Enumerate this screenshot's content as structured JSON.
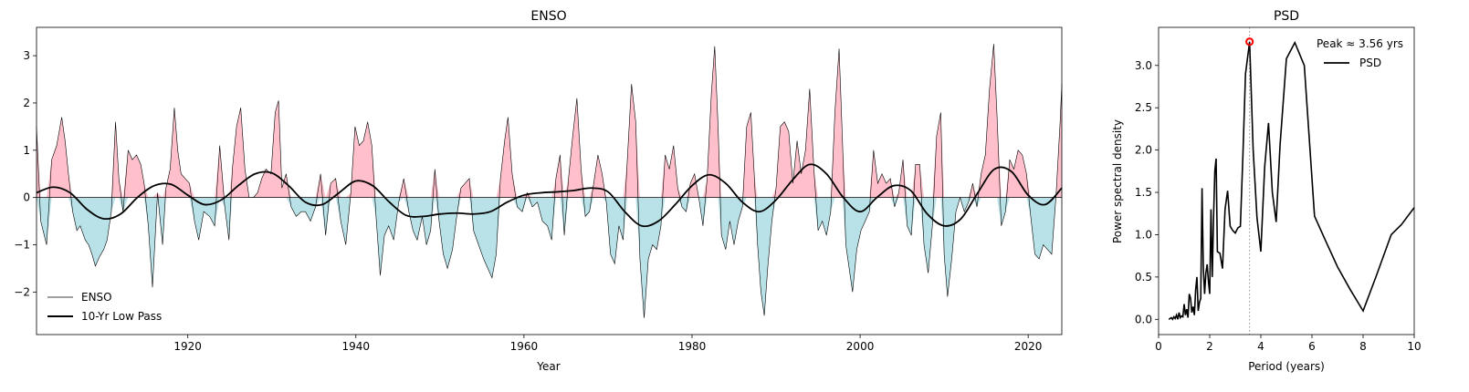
{
  "chart_data": [
    {
      "type": "area",
      "title": "ENSO",
      "xlabel": "Year",
      "ylabel": "",
      "xlim": [
        1902,
        2024
      ],
      "ylim": [
        -2.9,
        3.6
      ],
      "xticks": [
        1920,
        1940,
        1960,
        1980,
        2000,
        2020
      ],
      "yticks": [
        -2,
        -1,
        0,
        1,
        2,
        3
      ],
      "grid": false,
      "legend": {
        "placement": "lower-left",
        "entries": [
          "ENSO",
          "10-Yr Low Pass"
        ]
      },
      "colors": {
        "positive_fill": "#ffc0cb",
        "negative_fill": "#b8e2e8",
        "enso_line": "#000000",
        "lowpass_line": "#000000"
      },
      "series": [
        {
          "name": "ENSO",
          "x": [
            1902.0,
            1902.5,
            1903.2,
            1903.8,
            1904.4,
            1905.0,
            1905.4,
            1905.8,
            1906.3,
            1906.8,
            1907.2,
            1907.8,
            1908.2,
            1908.6,
            1909.0,
            1909.5,
            1910.0,
            1910.4,
            1910.9,
            1911.4,
            1911.8,
            1912.3,
            1912.9,
            1913.4,
            1913.9,
            1914.4,
            1914.8,
            1915.3,
            1915.8,
            1916.4,
            1917.0,
            1917.4,
            1917.9,
            1918.4,
            1918.8,
            1919.2,
            1919.7,
            1920.2,
            1920.8,
            1921.3,
            1921.9,
            1922.6,
            1923.2,
            1923.8,
            1924.4,
            1924.9,
            1925.3,
            1925.8,
            1926.3,
            1926.8,
            1927.3,
            1927.8,
            1928.3,
            1928.8,
            1929.3,
            1929.9,
            1930.4,
            1930.8,
            1931.2,
            1931.7,
            1932.3,
            1932.9,
            1933.5,
            1934.0,
            1934.6,
            1935.2,
            1935.8,
            1936.4,
            1937.0,
            1937.6,
            1938.2,
            1938.8,
            1939.4,
            1939.9,
            1940.4,
            1940.9,
            1941.4,
            1941.9,
            1942.4,
            1942.9,
            1943.4,
            1943.9,
            1944.5,
            1945.1,
            1945.7,
            1946.3,
            1946.8,
            1947.3,
            1947.9,
            1948.4,
            1948.9,
            1949.4,
            1949.9,
            1950.4,
            1950.9,
            1951.5,
            1952.0,
            1952.5,
            1953.0,
            1953.5,
            1954.0,
            1954.6,
            1955.2,
            1955.7,
            1956.2,
            1956.7,
            1957.2,
            1957.7,
            1958.1,
            1958.6,
            1959.2,
            1959.8,
            1960.4,
            1961.0,
            1961.6,
            1962.2,
            1962.8,
            1963.3,
            1963.8,
            1964.3,
            1964.8,
            1965.3,
            1965.8,
            1966.3,
            1966.8,
            1967.3,
            1967.8,
            1968.3,
            1968.8,
            1969.3,
            1969.8,
            1970.3,
            1970.8,
            1971.3,
            1971.8,
            1972.3,
            1972.8,
            1973.3,
            1973.8,
            1974.3,
            1974.8,
            1975.3,
            1975.8,
            1976.3,
            1976.8,
            1977.3,
            1977.8,
            1978.3,
            1978.8,
            1979.3,
            1979.8,
            1980.3,
            1980.8,
            1981.3,
            1981.8,
            1982.3,
            1982.7,
            1983.1,
            1983.5,
            1984.0,
            1984.5,
            1985.0,
            1985.5,
            1986.0,
            1986.5,
            1987.0,
            1987.4,
            1987.8,
            1988.2,
            1988.6,
            1989.0,
            1989.5,
            1990.0,
            1990.5,
            1991.0,
            1991.5,
            1992.0,
            1992.5,
            1993.0,
            1993.5,
            1994.0,
            1994.5,
            1995.0,
            1995.5,
            1996.0,
            1996.5,
            1997.0,
            1997.5,
            1997.9,
            1998.3,
            1998.7,
            1999.1,
            1999.6,
            2000.1,
            2000.6,
            2001.1,
            2001.6,
            2002.1,
            2002.6,
            2003.1,
            2003.6,
            2004.1,
            2004.6,
            2005.1,
            2005.6,
            2006.1,
            2006.6,
            2007.1,
            2007.6,
            2008.1,
            2008.6,
            2009.1,
            2009.6,
            2010.0,
            2010.4,
            2010.9,
            2011.4,
            2011.9,
            2012.4,
            2012.9,
            2013.4,
            2013.9,
            2014.4,
            2014.9,
            2015.4,
            2015.9,
            2016.3,
            2016.8,
            2017.3,
            2017.8,
            2018.3,
            2018.8,
            2019.3,
            2019.8,
            2020.3,
            2020.8,
            2021.3,
            2021.8,
            2022.3,
            2022.8,
            2023.3,
            2023.8,
            2024.0
          ],
          "values": [
            1.5,
            -0.5,
            -1.0,
            0.8,
            1.1,
            1.7,
            1.2,
            0.5,
            -0.3,
            -0.7,
            -0.6,
            -0.9,
            -1.0,
            -1.2,
            -1.45,
            -1.25,
            -1.1,
            -0.9,
            -0.3,
            1.6,
            0.4,
            -0.3,
            1.0,
            0.8,
            0.9,
            0.7,
            0.3,
            -0.6,
            -1.9,
            0.1,
            -1.0,
            0.2,
            0.6,
            1.9,
            1.0,
            0.5,
            0.4,
            0.3,
            -0.5,
            -0.9,
            -0.3,
            -0.4,
            -0.6,
            1.1,
            -0.2,
            -0.9,
            0.6,
            1.5,
            1.9,
            0.6,
            0.0,
            0.0,
            0.1,
            0.4,
            0.6,
            0.5,
            1.8,
            2.05,
            0.2,
            0.5,
            -0.2,
            -0.4,
            -0.3,
            -0.3,
            -0.5,
            -0.2,
            0.5,
            -0.8,
            0.3,
            0.4,
            -0.5,
            -1.0,
            0.1,
            1.5,
            1.1,
            1.2,
            1.6,
            1.1,
            -0.4,
            -1.65,
            -0.8,
            -0.6,
            -0.9,
            -0.1,
            0.4,
            -0.3,
            -0.7,
            -0.9,
            -0.4,
            -1.0,
            -0.7,
            0.6,
            -0.5,
            -1.2,
            -1.5,
            -1.1,
            -0.4,
            0.2,
            0.3,
            0.4,
            -0.7,
            -1.0,
            -1.3,
            -1.5,
            -1.7,
            -1.2,
            0.4,
            1.2,
            1.7,
            0.5,
            -0.2,
            -0.3,
            0.1,
            -0.2,
            -0.1,
            -0.5,
            -0.6,
            -0.9,
            0.4,
            0.9,
            -0.8,
            0.4,
            1.3,
            2.1,
            0.6,
            -0.4,
            -0.3,
            0.3,
            0.9,
            0.5,
            -0.1,
            -1.2,
            -1.4,
            -0.6,
            -0.9,
            0.8,
            2.4,
            1.6,
            -1.3,
            -2.55,
            -1.3,
            -1.0,
            -1.1,
            -0.6,
            0.9,
            0.6,
            1.1,
            0.2,
            -0.2,
            -0.3,
            0.3,
            0.5,
            0.0,
            -0.6,
            0.4,
            2.2,
            3.2,
            1.5,
            -0.8,
            -1.1,
            -0.5,
            -1.0,
            -0.5,
            -0.2,
            1.5,
            1.8,
            0.5,
            -1.0,
            -2.0,
            -2.5,
            -1.5,
            -0.5,
            0.2,
            1.5,
            1.6,
            1.4,
            0.3,
            1.2,
            0.5,
            1.0,
            2.3,
            0.6,
            -0.7,
            -0.5,
            -0.8,
            -0.3,
            1.8,
            3.15,
            1.2,
            -1.0,
            -1.5,
            -2.0,
            -1.1,
            -0.7,
            -0.5,
            -0.3,
            1.0,
            0.3,
            0.5,
            0.3,
            0.4,
            -0.2,
            0.1,
            0.8,
            -0.6,
            -0.8,
            0.7,
            0.7,
            -1.0,
            -1.6,
            -0.6,
            1.3,
            1.8,
            -1.2,
            -2.1,
            -1.3,
            -0.3,
            0.0,
            -0.3,
            -0.1,
            0.3,
            -0.2,
            0.5,
            0.9,
            2.3,
            3.25,
            1.7,
            -0.6,
            -0.3,
            0.8,
            0.6,
            1.0,
            0.9,
            0.5,
            -0.4,
            -1.2,
            -1.3,
            -1.0,
            -1.1,
            -1.2,
            0.0,
            1.6,
            2.4
          ]
        },
        {
          "name": "10-Yr Low Pass",
          "x": [
            1902,
            1904,
            1906,
            1908,
            1910,
            1912,
            1914,
            1916,
            1918,
            1920,
            1922,
            1924,
            1926,
            1928,
            1930,
            1932,
            1934,
            1936,
            1938,
            1940,
            1942,
            1944,
            1946,
            1948,
            1950,
            1952,
            1954,
            1956,
            1958,
            1960,
            1962,
            1964,
            1966,
            1968,
            1970,
            1972,
            1974,
            1976,
            1978,
            1980,
            1982,
            1984,
            1986,
            1988,
            1990,
            1992,
            1994,
            1996,
            1998,
            2000,
            2002,
            2004,
            2006,
            2008,
            2010,
            2012,
            2014,
            2016,
            2018,
            2020,
            2022,
            2024
          ],
          "values": [
            0.1,
            0.22,
            0.1,
            -0.25,
            -0.45,
            -0.35,
            0.0,
            0.25,
            0.28,
            0.05,
            -0.15,
            -0.05,
            0.25,
            0.5,
            0.52,
            0.25,
            -0.1,
            -0.15,
            0.1,
            0.35,
            0.25,
            -0.1,
            -0.38,
            -0.4,
            -0.35,
            -0.33,
            -0.35,
            -0.3,
            -0.1,
            0.05,
            0.1,
            0.12,
            0.15,
            0.2,
            0.12,
            -0.3,
            -0.6,
            -0.5,
            -0.15,
            0.25,
            0.48,
            0.3,
            -0.1,
            -0.3,
            -0.05,
            0.38,
            0.7,
            0.5,
            0.0,
            -0.3,
            0.0,
            0.25,
            0.15,
            -0.35,
            -0.6,
            -0.45,
            0.1,
            0.6,
            0.55,
            0.05,
            -0.15,
            0.2
          ]
        }
      ]
    },
    {
      "type": "line",
      "title": "PSD",
      "xlabel": "Period (years)",
      "ylabel": "Power spectral density",
      "xlim": [
        0,
        10
      ],
      "ylim": [
        -0.18,
        3.45
      ],
      "xticks": [
        0,
        2,
        4,
        6,
        8,
        10
      ],
      "yticks": [
        0.0,
        0.5,
        1.0,
        1.5,
        2.0,
        2.5,
        3.0
      ],
      "grid": false,
      "legend": {
        "placement": "upper-right",
        "entries": [
          "PSD"
        ]
      },
      "annotation": {
        "text": "Peak ≈ 3.56 yrs",
        "peak_x": 3.56,
        "peak_y": 3.28,
        "marker_color": "#ff0000"
      },
      "series": [
        {
          "name": "PSD",
          "x": [
            0.4,
            0.5,
            0.55,
            0.6,
            0.65,
            0.7,
            0.75,
            0.8,
            0.85,
            0.9,
            0.95,
            1.0,
            1.05,
            1.1,
            1.15,
            1.2,
            1.25,
            1.3,
            1.35,
            1.4,
            1.45,
            1.5,
            1.55,
            1.6,
            1.65,
            1.7,
            1.75,
            1.8,
            1.85,
            1.9,
            1.95,
            2.0,
            2.05,
            2.1,
            2.15,
            2.2,
            2.25,
            2.3,
            2.4,
            2.5,
            2.6,
            2.7,
            2.8,
            2.9,
            3.0,
            3.1,
            3.2,
            3.3,
            3.4,
            3.56,
            3.7,
            3.85,
            4.0,
            4.15,
            4.3,
            4.45,
            4.6,
            4.75,
            5.0,
            5.33,
            5.7,
            6.1,
            6.5,
            7.0,
            7.5,
            8.0,
            8.5,
            9.1,
            9.5,
            10.0
          ],
          "values": [
            0.0,
            0.02,
            0.0,
            0.03,
            0.01,
            0.05,
            0.0,
            0.08,
            0.02,
            0.04,
            0.03,
            0.18,
            0.05,
            0.12,
            0.02,
            0.3,
            0.25,
            0.08,
            0.15,
            0.05,
            0.35,
            0.5,
            0.1,
            0.2,
            0.25,
            1.55,
            0.6,
            0.3,
            0.55,
            0.65,
            0.45,
            0.3,
            1.3,
            0.5,
            1.2,
            1.75,
            1.9,
            0.8,
            0.78,
            0.6,
            1.3,
            1.52,
            1.1,
            1.05,
            1.02,
            1.08,
            1.1,
            1.95,
            2.9,
            3.28,
            2.0,
            1.2,
            0.8,
            1.8,
            2.32,
            1.5,
            1.15,
            2.05,
            3.08,
            3.27,
            3.0,
            1.22,
            0.95,
            0.62,
            0.35,
            0.1,
            0.5,
            1.0,
            1.12,
            1.32
          ]
        }
      ]
    }
  ]
}
